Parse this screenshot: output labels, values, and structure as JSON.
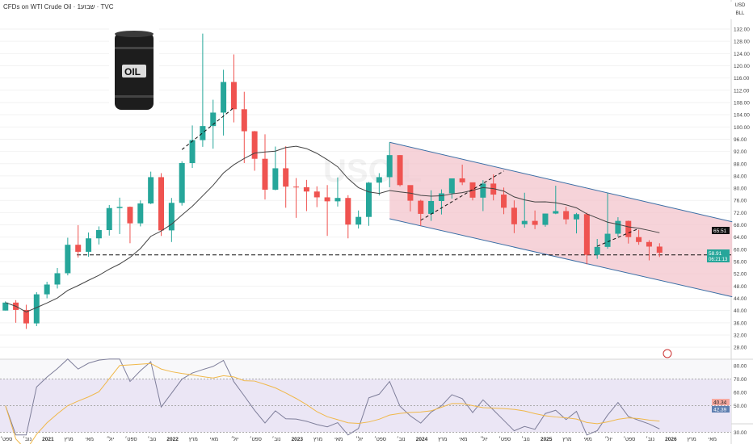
{
  "header": {
    "title": "CFDs on WTI Crude Oil · 1שבוע · TVC",
    "currency": "USD",
    "unit": "BLL"
  },
  "watermark": "USOIL",
  "logo_text": "OIL",
  "colors": {
    "up": "#26a69a",
    "down": "#ef5350",
    "ma": "#444444",
    "channel_fill": "#f3c4cc",
    "channel_line": "#3a6ea5",
    "rsi": "#7e7e9a",
    "rsi_ma": "#f0b84a",
    "rsi_band": "#ebe6f5",
    "last_price": "#26a69a"
  },
  "chart_data": [
    {
      "type": "candlestick",
      "interval": "monthly approximation",
      "start": "2020-08",
      "ohlc": [
        [
          40,
          43,
          40,
          42.6
        ],
        [
          42.6,
          43.4,
          36,
          40.2
        ],
        [
          40.2,
          41.9,
          34,
          35.8
        ],
        [
          35.8,
          46,
          34.9,
          45.3
        ],
        [
          45.3,
          49.4,
          44,
          48.5
        ],
        [
          48.5,
          53.9,
          47.2,
          52.2
        ],
        [
          52.2,
          63.8,
          51.5,
          61.5
        ],
        [
          61.5,
          67.9,
          57.3,
          59.2
        ],
        [
          59.2,
          65.5,
          57.6,
          63.6
        ],
        [
          63.6,
          67.5,
          61.6,
          66.3
        ],
        [
          66.3,
          74.5,
          64.5,
          73.5
        ],
        [
          73.5,
          76.9,
          65,
          73.9
        ],
        [
          73.9,
          74,
          62,
          68.5
        ],
        [
          68.5,
          76,
          67.5,
          75
        ],
        [
          75,
          85.4,
          74.8,
          83.6
        ],
        [
          83.6,
          84.9,
          64.4,
          66.2
        ],
        [
          66.2,
          76.8,
          62.4,
          75.2
        ],
        [
          75.2,
          88.8,
          74.3,
          88.2
        ],
        [
          88.2,
          100.5,
          86.6,
          95.7
        ],
        [
          95.7,
          130.5,
          93.5,
          100.3
        ],
        [
          100.3,
          108.9,
          92.9,
          104.7
        ],
        [
          104.7,
          118.7,
          97.2,
          114.7
        ],
        [
          114.7,
          123.7,
          101.5,
          105.8
        ],
        [
          105.8,
          111.5,
          88.2,
          98.6
        ],
        [
          98.6,
          98.7,
          85.7,
          89.6
        ],
        [
          89.6,
          97.6,
          76.3,
          79.5
        ],
        [
          79.5,
          93.6,
          79.3,
          86.5
        ],
        [
          86.5,
          93.7,
          73.6,
          80.5
        ],
        [
          80.5,
          83.3,
          70.3,
          80.3
        ],
        [
          80.3,
          82.7,
          72.5,
          78.9
        ],
        [
          78.9,
          80.6,
          73.8,
          77
        ],
        [
          77,
          81,
          64.4,
          75.7
        ],
        [
          75.7,
          83.5,
          74,
          76.8
        ],
        [
          76.8,
          77.7,
          63.6,
          68.1
        ],
        [
          68.1,
          72.7,
          66.8,
          70.6
        ],
        [
          70.6,
          82,
          67.7,
          81.8
        ],
        [
          81.8,
          84.9,
          77.6,
          83.6
        ],
        [
          83.6,
          95,
          80.3,
          90.8
        ],
        [
          90.8,
          90.8,
          80.6,
          81
        ],
        [
          81,
          80.2,
          72.4,
          75.9
        ],
        [
          75.9,
          76.2,
          67.7,
          71.6
        ],
        [
          71.6,
          79.3,
          69.3,
          75.8
        ],
        [
          75.8,
          79.6,
          71.4,
          78.3
        ],
        [
          78.3,
          83.1,
          76.6,
          83.2
        ],
        [
          83.2,
          87.7,
          81,
          81.9
        ],
        [
          81.9,
          81.8,
          76,
          76.9
        ],
        [
          76.9,
          82.6,
          72.5,
          81.5
        ],
        [
          81.5,
          84.5,
          76,
          77.9
        ],
        [
          77.9,
          80.2,
          71.5,
          73.6
        ],
        [
          73.6,
          76,
          65.3,
          68.2
        ],
        [
          68.2,
          78.5,
          67.1,
          69.3
        ],
        [
          69.3,
          72.7,
          66.6,
          68
        ],
        [
          68,
          71.7,
          67.4,
          71.7
        ],
        [
          71.7,
          80.8,
          71.5,
          72.5
        ],
        [
          72.5,
          73.9,
          68.2,
          69.8
        ],
        [
          69.8,
          71.9,
          65.2,
          71.5
        ],
        [
          71.5,
          72,
          55.1,
          58.2
        ],
        [
          58.2,
          63.4,
          56.9,
          60.8
        ],
        [
          60.8,
          78.4,
          60.2,
          65.1
        ],
        [
          65.1,
          70.5,
          64.2,
          69.3
        ],
        [
          69.3,
          69.4,
          61.9,
          64
        ],
        [
          64,
          66.4,
          61.5,
          62.4
        ],
        [
          62.4,
          63,
          56.4,
          60.9
        ],
        [
          60.9,
          62,
          57.5,
          58.9
        ]
      ],
      "ma_period": 12,
      "ylim": [
        26,
        134
      ],
      "y_ticks": [
        132,
        128,
        124,
        120,
        116,
        112,
        108,
        104,
        100,
        96,
        92,
        88,
        84,
        80,
        76,
        72,
        68,
        64,
        60,
        56,
        52,
        48,
        44,
        40,
        36,
        32,
        28
      ],
      "x_ticks": [
        "ספט׳",
        "נוב׳",
        "2021",
        "מרץ",
        "מאי",
        "יול׳",
        "ספט׳",
        "נוב׳",
        "2022",
        "מרץ",
        "מאי",
        "יול׳",
        "ספט׳",
        "נוב׳",
        "2023",
        "מרץ",
        "מאי",
        "יול׳",
        "ספט׳",
        "נוב׳",
        "2024",
        "מרץ",
        "מאי",
        "יול׳",
        "ספט׳",
        "נוב׳",
        "2025",
        "מרץ",
        "מאי",
        "יול׳",
        "ספט׳",
        "נוב׳",
        "2026",
        "מרץ",
        "מאי"
      ],
      "last_price": "58.91",
      "countdown": "06:21:13",
      "ma_value": "65.51",
      "horizontal_level": 58.2,
      "channel": {
        "upper": [
          [
            "2023-09",
            95
          ],
          [
            "2026-06",
            69
          ]
        ],
        "lower": [
          [
            "2023-09",
            70
          ],
          [
            "2026-06",
            44.5
          ]
        ]
      },
      "trendlines": [
        [
          [
            "2022-01",
            92.6
          ],
          [
            "2022-06",
            106.3
          ]
        ],
        [
          [
            "2023-12",
            69.5
          ],
          [
            "2024-08",
            85.6
          ]
        ],
        [
          [
            "2025-05",
            61
          ],
          [
            "2025-09",
            66.8
          ]
        ]
      ]
    },
    {
      "type": "line",
      "indicator": "RSI",
      "ylim": [
        28,
        85
      ],
      "y_ticks": [
        80,
        70,
        60,
        50,
        30
      ],
      "bands": [
        30,
        70
      ],
      "rsi_value": "42.39",
      "rsi_ma_value": "40.34"
    }
  ]
}
